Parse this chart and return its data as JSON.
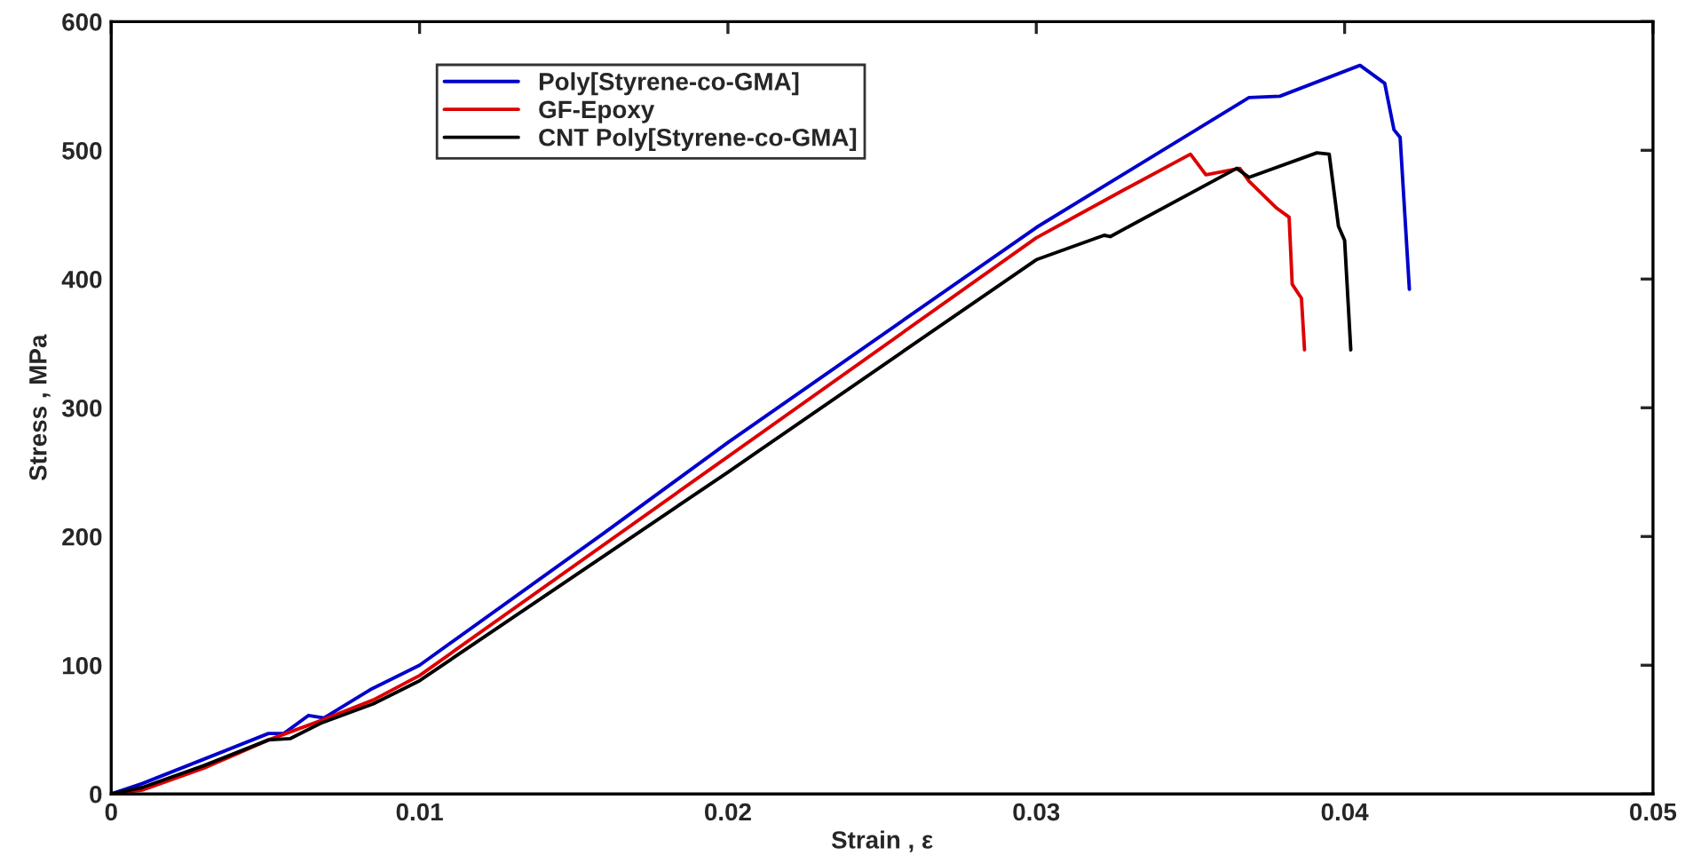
{
  "chart_data": {
    "type": "line",
    "xlabel": "Strain , ε",
    "ylabel": "Stress , MPa",
    "xlim": [
      0,
      0.05
    ],
    "ylim": [
      0,
      600
    ],
    "xticks": [
      0,
      0.01,
      0.02,
      0.03,
      0.04,
      0.05
    ],
    "yticks": [
      0,
      100,
      200,
      300,
      400,
      500,
      600
    ],
    "grid": false,
    "legend": "top",
    "marker": "none",
    "line_style": "solid",
    "series": [
      {
        "name": "Poly[Styrene-co-GMA]",
        "color": "#0000cc",
        "x": [
          0,
          0.001,
          0.003,
          0.0051,
          0.0056,
          0.0064,
          0.0069,
          0.0084,
          0.01,
          0.016,
          0.02,
          0.03,
          0.0369,
          0.0379,
          0.0405,
          0.0413,
          0.0416,
          0.0418,
          0.0421
        ],
        "values": [
          0,
          8,
          27,
          47,
          47,
          61,
          59,
          81,
          100,
          203,
          273,
          440,
          541,
          542,
          566,
          552,
          516,
          510,
          392
        ]
      },
      {
        "name": "GF-Epoxy",
        "color": "#dd0000",
        "x": [
          0,
          0.001,
          0.003,
          0.0051,
          0.0068,
          0.0085,
          0.01,
          0.02,
          0.03,
          0.0329,
          0.035,
          0.0355,
          0.0366,
          0.0369,
          0.0378,
          0.0382,
          0.0383,
          0.0386,
          0.0387
        ],
        "values": [
          0,
          3,
          20,
          42,
          57,
          73,
          92,
          262,
          432,
          470,
          497,
          481,
          486,
          476,
          455,
          448,
          396,
          385,
          345
        ]
      },
      {
        "name": "CNT Poly[Styrene-co-GMA]",
        "color": "#000000",
        "x": [
          0,
          0.001,
          0.003,
          0.0051,
          0.0058,
          0.0068,
          0.0085,
          0.01,
          0.02,
          0.03,
          0.0322,
          0.0324,
          0.0365,
          0.0369,
          0.0391,
          0.0395,
          0.0398,
          0.04,
          0.0402
        ],
        "values": [
          0,
          5,
          22,
          42,
          43,
          55,
          70,
          88,
          250,
          415,
          434,
          433,
          486,
          479,
          498,
          497,
          441,
          430,
          345
        ]
      }
    ]
  }
}
